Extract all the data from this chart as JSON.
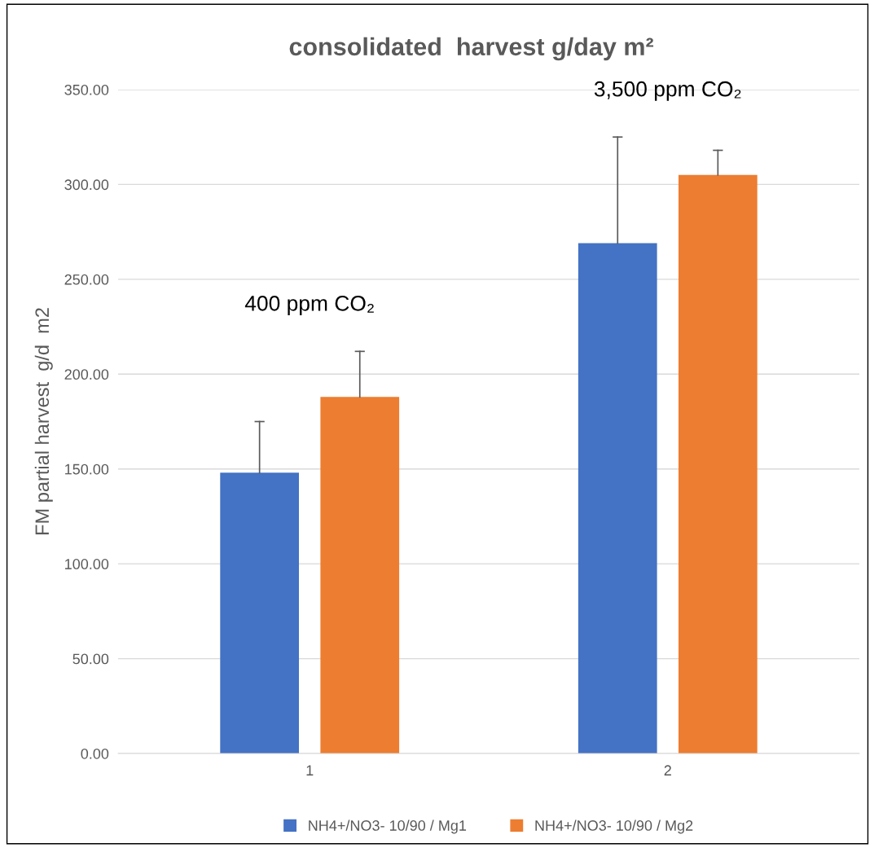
{
  "chart_data": {
    "type": "bar",
    "title": "consolidated  harvest g/day m²",
    "ylabel": "FM partial harvest  g/d  m2",
    "categories": [
      "1",
      "2"
    ],
    "series": [
      {
        "name": "NH4+/NO3- 10/90 / Mg1",
        "color": "#4472c4",
        "values": [
          148,
          269
        ],
        "errors": [
          [
            148,
            175
          ],
          [
            269,
            325
          ]
        ]
      },
      {
        "name": "NH4+/NO3- 10/90 / Mg2",
        "color": "#ed7d31",
        "values": [
          188,
          305
        ],
        "errors": [
          [
            188,
            212
          ],
          [
            305,
            318
          ]
        ]
      }
    ],
    "ylim": [
      0,
      350
    ],
    "yticks": [
      {
        "value": 0,
        "label": "0.00"
      },
      {
        "value": 50,
        "label": "50.00"
      },
      {
        "value": 100,
        "label": "100.00"
      },
      {
        "value": 150,
        "label": "150.00"
      },
      {
        "value": 200,
        "label": "200.00"
      },
      {
        "value": 250,
        "label": "250.00"
      },
      {
        "value": 300,
        "label": "300.00"
      },
      {
        "value": 350,
        "label": "350.00"
      }
    ],
    "grid": "y",
    "legend": "bottom",
    "annotations": [
      "400 ppm CO₂",
      "3,500 ppm CO₂"
    ]
  }
}
